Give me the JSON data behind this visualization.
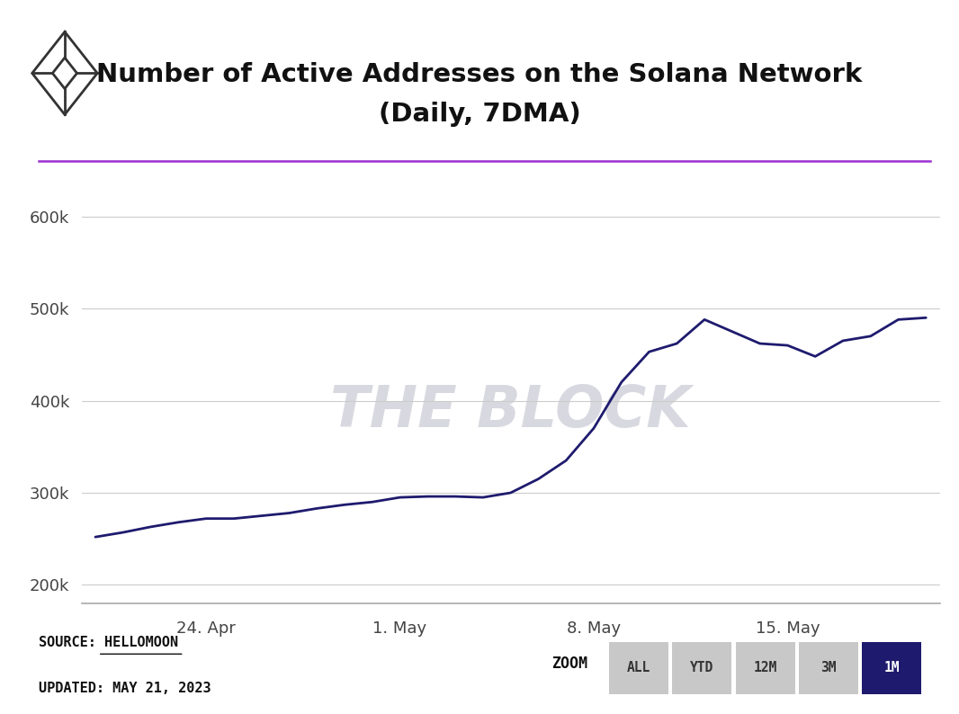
{
  "title_line1": "Number of Active Addresses on the Solana Network",
  "title_line2": "(Daily, 7DMA)",
  "title_fontsize": 21,
  "line_color": "#1e1b6e",
  "line_width": 2.0,
  "bg_color": "#ffffff",
  "plot_bg_color": "#ffffff",
  "grid_color": "#cccccc",
  "watermark_text": "THE BLOCK",
  "watermark_color": "#d8d8e0",
  "purple_line_color": "#9b30d0",
  "source_text": "SOURCE: HELLOMOON",
  "updated_text": "UPDATED: MAY 21, 2023",
  "zoom_label": "ZOOM",
  "zoom_buttons": [
    "ALL",
    "YTD",
    "12M",
    "3M",
    "1M"
  ],
  "zoom_active": "1M",
  "zoom_active_bg": "#1e1b6e",
  "zoom_inactive_bg": "#c8c8c8",
  "x_tick_labels": [
    "24. Apr",
    "1. May",
    "8. May",
    "15. May"
  ],
  "y_ticks": [
    200000,
    300000,
    400000,
    500000,
    600000
  ],
  "ylim": [
    180000,
    645000
  ],
  "data_x": [
    0,
    1,
    2,
    3,
    4,
    5,
    6,
    7,
    8,
    9,
    10,
    11,
    12,
    13,
    14,
    15,
    16,
    17,
    18,
    19,
    20,
    21,
    22,
    23,
    24,
    25,
    26,
    27,
    28,
    29,
    30
  ],
  "data_y": [
    252000,
    257000,
    263000,
    268000,
    272000,
    272000,
    275000,
    278000,
    283000,
    287000,
    290000,
    295000,
    296000,
    296000,
    295000,
    300000,
    315000,
    335000,
    370000,
    420000,
    453000,
    462000,
    488000,
    475000,
    462000,
    460000,
    448000,
    465000,
    470000,
    488000,
    490000
  ],
  "x_tick_positions": [
    4,
    11,
    18,
    25
  ],
  "icon_color": "#333333"
}
